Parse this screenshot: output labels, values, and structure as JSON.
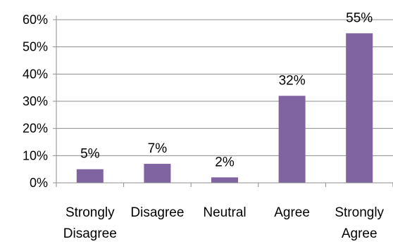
{
  "chart_data": {
    "type": "bar",
    "categories": [
      [
        "Strongly",
        "Disagree"
      ],
      [
        "Disagree"
      ],
      [
        "Neutral"
      ],
      [
        "Agree"
      ],
      [
        "Strongly",
        "Agree"
      ]
    ],
    "values": [
      5,
      7,
      2,
      32,
      55
    ],
    "data_labels": [
      "5%",
      "7%",
      "2%",
      "32%",
      "55%"
    ],
    "y_ticks": [
      "0%",
      "10%",
      "20%",
      "30%",
      "40%",
      "50%",
      "60%"
    ],
    "ylim": [
      0,
      60
    ],
    "grid": true,
    "legend": "none",
    "title": "",
    "xlabel": "",
    "ylabel": "",
    "colors": {
      "bar": "#8064a2",
      "grid": "#8c8c8c",
      "axis": "#8c8c8c"
    }
  }
}
